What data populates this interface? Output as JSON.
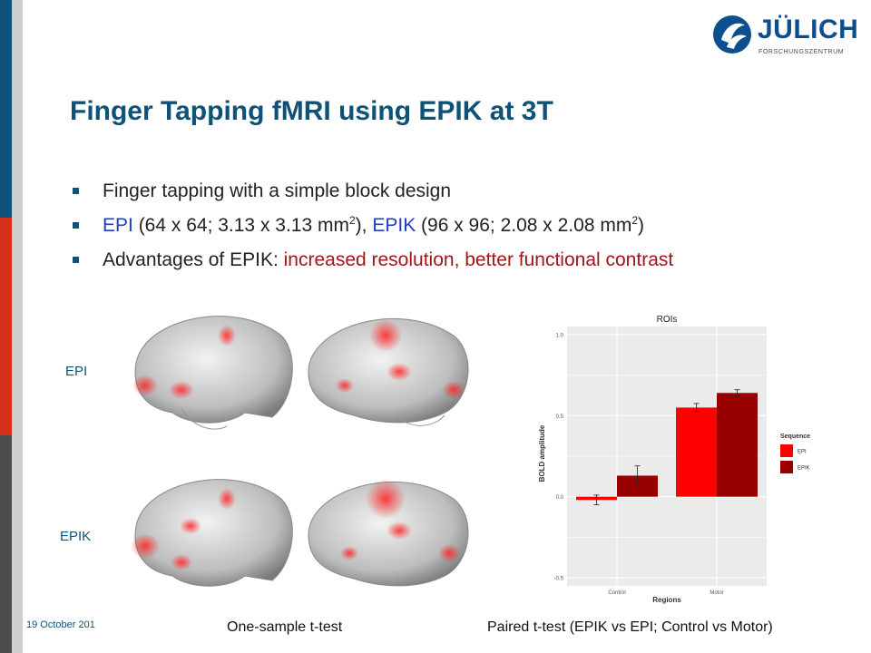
{
  "logo": {
    "name": "JÜLICH",
    "subtitle": "FORSCHUNGSZENTRUM"
  },
  "slide": {
    "title": "Finger Tapping fMRI using EPIK at 3T",
    "bullets": [
      {
        "text": "Finger tapping with a simple block design"
      },
      {
        "epi": "EPI",
        "epi_spec": " (64 x 64; 3.13 x 3.13 mm",
        "sup": "2",
        "mid": "), ",
        "epik": "EPIK",
        "epik_spec": " (96 x 96; 2.08 x 2.08 mm",
        "end": ")"
      },
      {
        "lead": "Advantages of EPIK: ",
        "highlight": "increased resolution, better functional contrast"
      }
    ],
    "row_labels": {
      "top": "EPI",
      "bottom": "EPIK"
    },
    "captions": {
      "left": "One-sample t-test",
      "right": "Paired t-test (EPIK vs EPI; Control vs Motor)"
    },
    "date": "19 October 201"
  },
  "colors": {
    "brand_blue": "#0f5278",
    "epi_red": "#ff0000",
    "epik_darkred": "#990000",
    "accent_red": "#a11616"
  },
  "chart_data": {
    "type": "bar",
    "title": "ROIs",
    "xlabel": "Regions",
    "ylabel": "BOLD amplitude",
    "categories": [
      "Control",
      "Motor"
    ],
    "ylim": [
      -0.5,
      1.0
    ],
    "yticks": [
      "-0.5",
      "0.0",
      "0.5",
      "1.0"
    ],
    "legend_title": "Sequence",
    "legend_position": "right",
    "series": [
      {
        "name": "EPI",
        "color": "#ff0000",
        "values": [
          -0.02,
          0.55
        ],
        "errors": [
          0.03,
          0.025
        ]
      },
      {
        "name": "EPIK",
        "color": "#990000",
        "values": [
          0.13,
          0.64
        ],
        "errors": [
          0.06,
          0.02
        ]
      }
    ]
  }
}
